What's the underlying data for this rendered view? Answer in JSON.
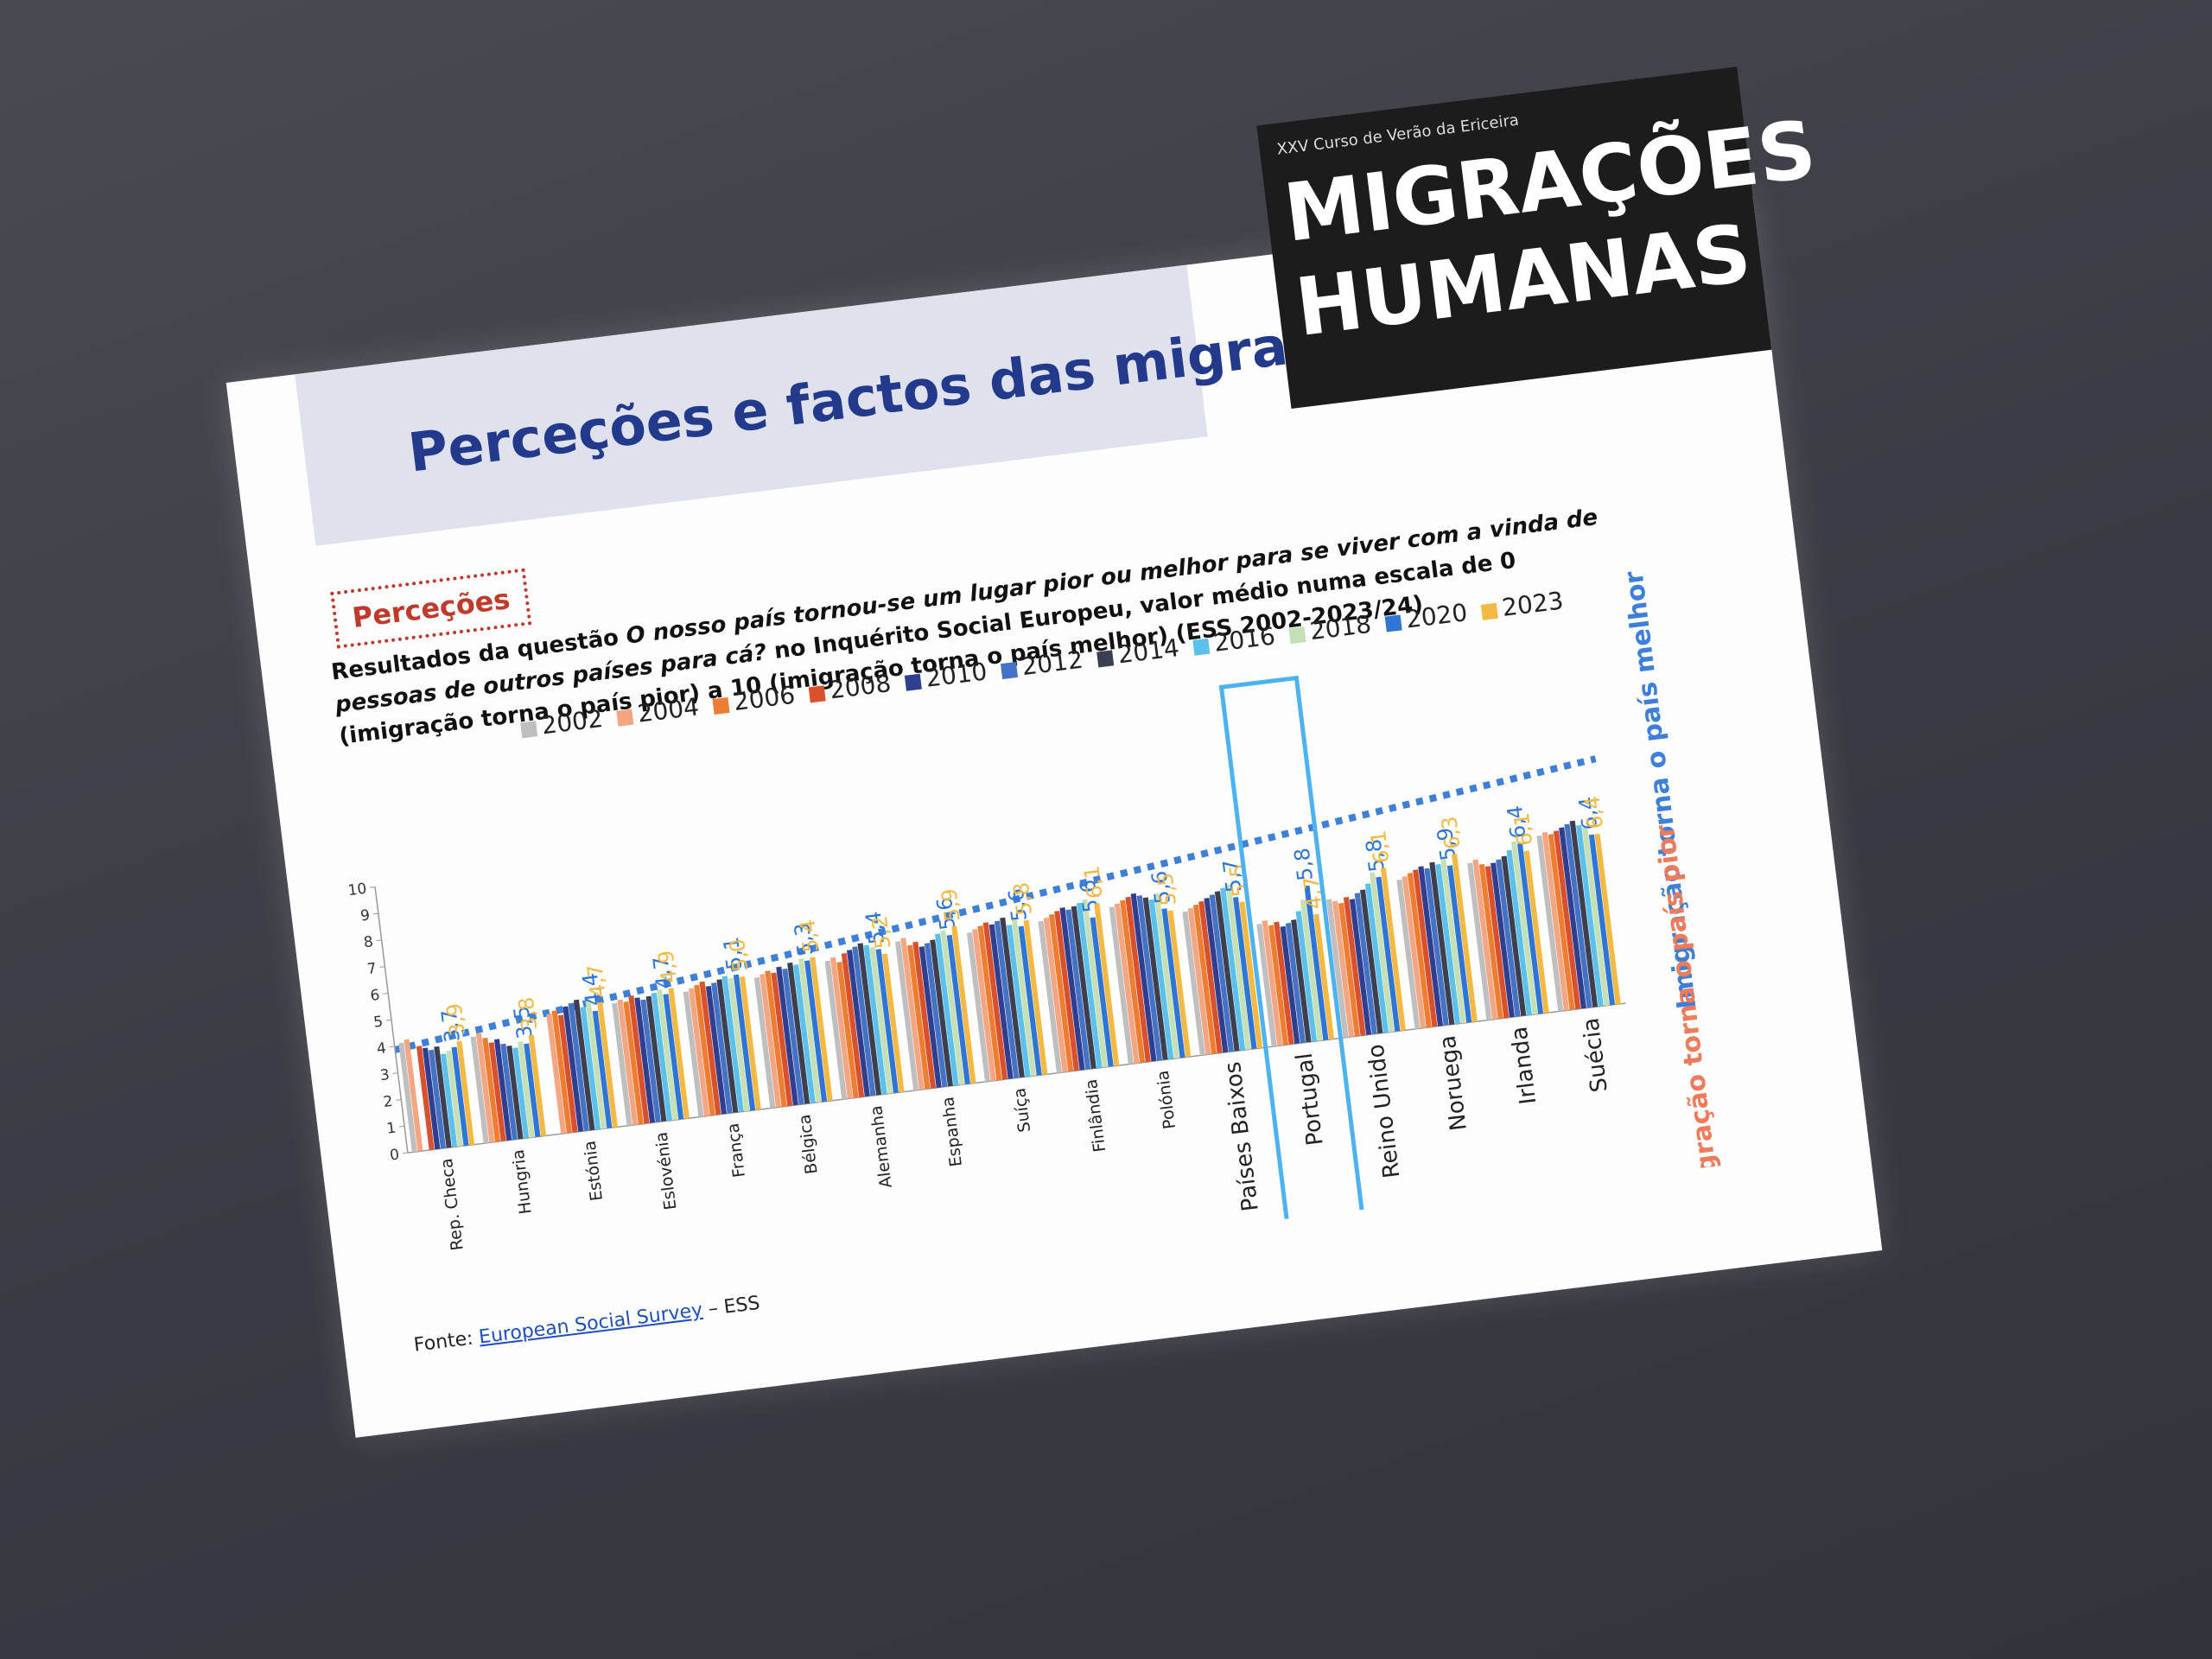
{
  "slide": {
    "title": "Perceções e factos das migrações",
    "logo_kicker": "XXV Curso de Verão da Ericeira",
    "logo_line1": "MIGRAÇÕES",
    "logo_line2": "HUMANAS",
    "tag": "Perceções",
    "question_prefix": "Resultados da questão ",
    "question_italic": "O nosso país tornou-se um lugar pior ou melhor para se viver com a vinda de pessoas de outros países para cá?",
    "question_suffix": " no Inquérito Social Europeu, valor médio numa escala de 0 (imigração torna o país pior) a 10 (imigração torna o país melhor) (ESS 2002-2023/24)",
    "note_better": "Imigração torna o país melhor",
    "note_worse": "Imigração torna o país pior",
    "source_prefix": "Fonte: ",
    "source_link": "European Social Survey",
    "source_suffix": " – ESS"
  },
  "chart_data": {
    "type": "bar",
    "categories": [
      "Rep. Checa",
      "Hungria",
      "Estónia",
      "Eslovénia",
      "França",
      "Bélgica",
      "Alemanha",
      "Espanha",
      "Suíça",
      "Finlândia",
      "Polónia",
      "Países Baixos",
      "Portugal",
      "Reino Unido",
      "Noruega",
      "Irlanda",
      "Suécia"
    ],
    "ylim": [
      0,
      10
    ],
    "yticks": [
      0,
      1,
      2,
      3,
      4,
      5,
      6,
      7,
      8,
      9,
      10
    ],
    "series": [
      {
        "name": "2002",
        "color": "#bfbfbf",
        "values": [
          4.1,
          4.0,
          null,
          4.6,
          4.7,
          4.9,
          5.2,
          5.6,
          5.6,
          5.7,
          5.9,
          5.4,
          4.6,
          5.2,
          5.6,
          5.9,
          6.6
        ]
      },
      {
        "name": "2004",
        "color": "#f4a582",
        "values": [
          4.2,
          4.1,
          4.5,
          4.7,
          4.8,
          5.0,
          5.3,
          5.7,
          5.7,
          5.8,
          6.0,
          5.5,
          4.7,
          5.1,
          5.7,
          6.0,
          6.7
        ]
      },
      {
        "name": "2006",
        "color": "#ed7d31",
        "values": [
          null,
          3.9,
          4.6,
          4.6,
          4.9,
          5.1,
          5.1,
          5.4,
          5.8,
          5.9,
          6.1,
          5.6,
          4.5,
          5.0,
          5.8,
          5.8,
          6.6
        ]
      },
      {
        "name": "2008",
        "color": "#d9512c",
        "values": [
          3.9,
          3.7,
          4.4,
          4.8,
          5.0,
          5.0,
          5.4,
          5.5,
          5.9,
          6.0,
          6.2,
          5.7,
          4.6,
          5.2,
          5.9,
          5.7,
          6.7
        ]
      },
      {
        "name": "2010",
        "color": "#2f3e8f",
        "values": [
          3.8,
          3.8,
          4.7,
          4.7,
          4.8,
          5.2,
          5.5,
          5.3,
          5.8,
          6.1,
          6.3,
          5.8,
          4.4,
          5.1,
          6.0,
          5.8,
          6.8
        ]
      },
      {
        "name": "2012",
        "color": "#4472c4",
        "values": [
          3.7,
          3.6,
          4.8,
          4.6,
          4.9,
          5.1,
          5.6,
          5.4,
          5.9,
          6.0,
          6.2,
          5.9,
          4.5,
          5.3,
          5.9,
          5.9,
          6.9
        ]
      },
      {
        "name": "2014",
        "color": "#3b3f4f",
        "values": [
          3.8,
          3.5,
          4.9,
          4.7,
          5.0,
          5.3,
          5.7,
          5.5,
          6.0,
          6.1,
          6.1,
          6.0,
          4.6,
          5.4,
          6.1,
          6.0,
          7.0
        ]
      },
      {
        "name": "2016",
        "color": "#5bc0eb",
        "values": [
          3.5,
          3.4,
          4.6,
          4.8,
          5.1,
          5.2,
          5.6,
          5.7,
          5.7,
          6.2,
          6.0,
          6.1,
          4.9,
          5.6,
          6.0,
          6.2,
          6.8
        ]
      },
      {
        "name": "2018",
        "color": "#c5e0b4",
        "values": [
          3.6,
          3.6,
          4.8,
          4.9,
          5.0,
          5.4,
          5.5,
          5.8,
          5.9,
          6.3,
          6.2,
          6.2,
          5.3,
          6.0,
          6.2,
          6.5,
          6.7
        ]
      },
      {
        "name": "2020",
        "color": "#2e75d6",
        "values": [
          3.7,
          3.5,
          4.4,
          4.7,
          5.1,
          5.3,
          5.4,
          5.6,
          5.6,
          5.6,
          5.6,
          5.7,
          5.8,
          5.8,
          5.9,
          6.4,
          6.4
        ],
        "value_labels": [
          "3,7",
          "3,5",
          "4,4",
          "4,7",
          "5,1",
          "5,3",
          "5,4",
          "5,6",
          "5,6",
          "5,6",
          "5,6",
          "5,7",
          "5,8",
          "5,8",
          "5,9",
          "6,4",
          "6,4"
        ]
      },
      {
        "name": "2023",
        "color": "#f4b942",
        "values": [
          3.9,
          3.8,
          4.7,
          4.9,
          5.0,
          5.4,
          5.2,
          5.9,
          5.8,
          6.1,
          5.5,
          5.5,
          4.7,
          6.1,
          6.3,
          6.1,
          6.4
        ],
        "value_labels": [
          "3,9",
          "3,8",
          "4,7",
          "4,9",
          "5,0",
          "5,4",
          "5,2",
          "5,9",
          "5,8",
          "6,1",
          "5,5",
          "5,5",
          "4,7",
          "6,1",
          "6,3",
          "6,1",
          "6,4"
        ]
      }
    ]
  }
}
